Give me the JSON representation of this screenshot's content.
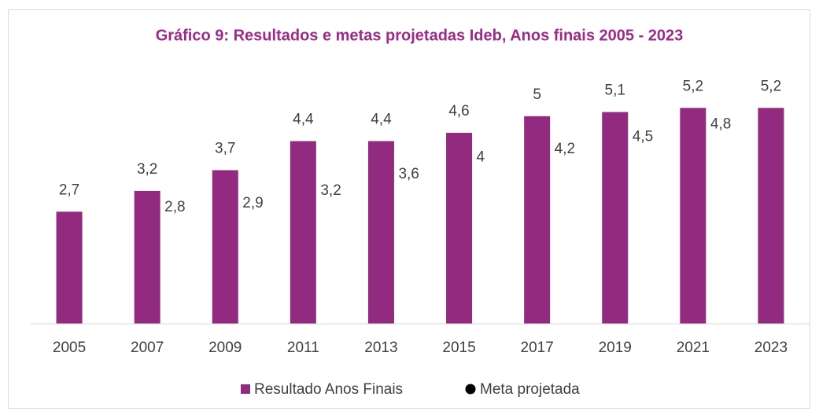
{
  "chart_data": {
    "type": "bar",
    "title": "Gráfico 9: Resultados e metas projetadas Ideb, Anos finais 2005 - 2023",
    "categories": [
      "2005",
      "2007",
      "2009",
      "2011",
      "2013",
      "2015",
      "2017",
      "2019",
      "2021",
      "2023"
    ],
    "series": [
      {
        "name": "Resultado Anos Finais",
        "color": "#922b7f",
        "values": [
          2.7,
          3.2,
          3.7,
          4.4,
          4.4,
          4.6,
          5,
          5.1,
          5.2,
          5.2
        ],
        "value_labels": [
          "2,7",
          "3,2",
          "3,7",
          "4,4",
          "4,4",
          "4,6",
          "5",
          "5,1",
          "5,2",
          "5,2"
        ]
      },
      {
        "name": "Meta projetada",
        "color": "#000000",
        "values": [
          null,
          2.8,
          2.9,
          3.2,
          3.6,
          4,
          4.2,
          4.5,
          4.8,
          null
        ],
        "value_labels": [
          null,
          "2,8",
          "2,9",
          "3,2",
          "3,6",
          "4",
          "4,2",
          "4,5",
          "4,8",
          null
        ]
      }
    ],
    "ylim": [
      0,
      6
    ]
  }
}
